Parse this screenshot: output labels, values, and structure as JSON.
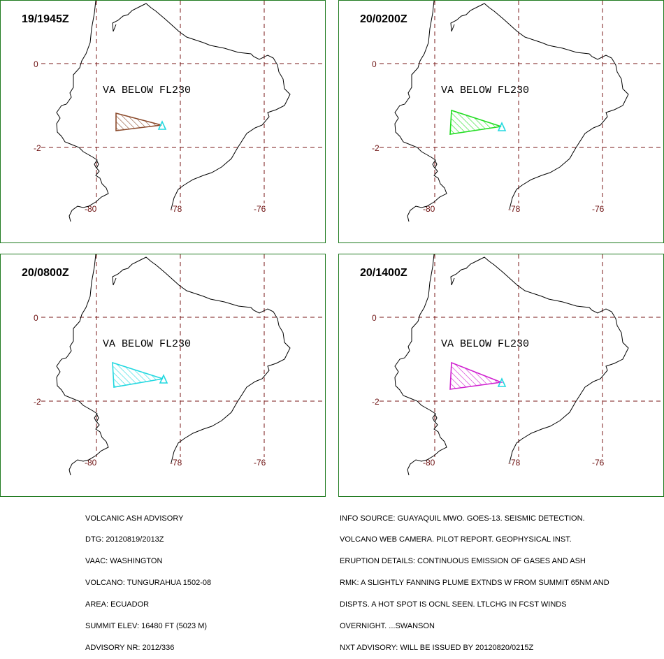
{
  "panels": [
    {
      "time": "19/1945Z",
      "label": "VA BELOW FL230",
      "plume_color": "#8b4a2b"
    },
    {
      "time": "20/0200Z",
      "label": "VA BELOW FL230",
      "plume_color": "#22dd22"
    },
    {
      "time": "20/0800Z",
      "label": "VA BELOW FL230",
      "plume_color": "#22d8e0"
    },
    {
      "time": "20/1400Z",
      "label": "VA BELOW FL230",
      "plume_color": "#d020d0"
    }
  ],
  "axes": {
    "lat_labels": [
      "0",
      "-2"
    ],
    "lon_labels": [
      "-80",
      "-78",
      "-76"
    ]
  },
  "colors": {
    "grid": "#7a1a1a",
    "coast": "#000000",
    "volcano": "#22d8e0",
    "frame": "#1f7a1f"
  },
  "advisory_left": [
    "VOLCANIC ASH ADVISORY",
    "DTG: 20120819/2013Z",
    "VAAC: WASHINGTON",
    "VOLCANO: TUNGURAHUA 1502-08",
    "AREA: ECUADOR",
    "SUMMIT ELEV: 16480 FT (5023 M)",
    "ADVISORY NR: 2012/336"
  ],
  "advisory_right": [
    "INFO SOURCE: GUAYAQUIL MWO. GOES-13. SEISMIC DETECTION.",
    "VOLCANO WEB CAMERA. PILOT REPORT. GEOPHYSICAL INST.",
    "ERUPTION DETAILS: CONTINUOUS EMISSION OF GASES AND ASH",
    "RMK: A SLIGHTLY FANNING PLUME EXTNDS W FROM SUMMIT 65NM AND",
    "DISPTS. A HOT SPOT IS OCNL SEEN. LTLCHG IN FCST WINDS",
    "OVERNIGHT. ...SWANSON",
    "NXT ADVISORY: WILL BE ISSUED BY 20120820/0215Z"
  ]
}
